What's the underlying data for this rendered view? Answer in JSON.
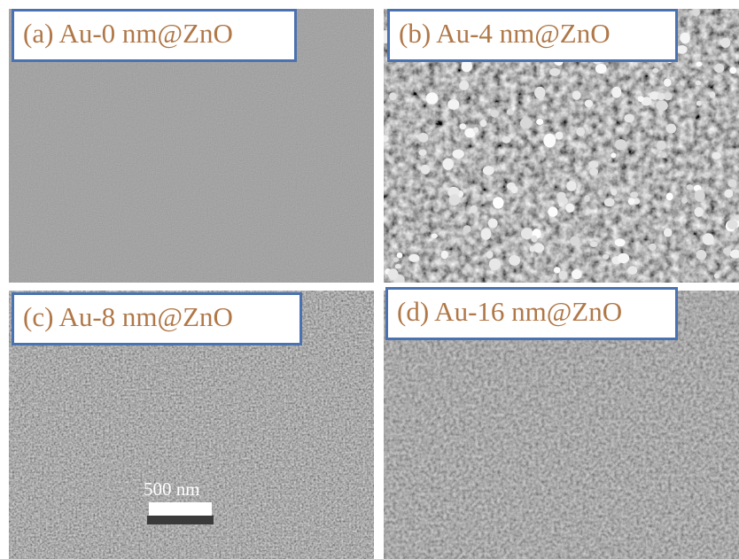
{
  "figure": {
    "panels": [
      {
        "id": "a",
        "label": "(a) Au-0 nm@ZnO",
        "texture": "smooth"
      },
      {
        "id": "b",
        "label": "(b) Au-4 nm@ZnO",
        "texture": "particles"
      },
      {
        "id": "c",
        "label": "(c) Au-8 nm@ZnO",
        "texture": "fine-grain"
      },
      {
        "id": "d",
        "label": "(d) Au-16 nm@ZnO",
        "texture": "coarse-grain"
      }
    ],
    "scale_bar": {
      "label": "500 nm"
    }
  },
  "colors": {
    "label_border": "#4a72b0",
    "label_text": "#b07848",
    "smooth_bg": "#5c5c5c",
    "particles_bg": "#3c3c3c",
    "grain_bg": "#4e4e4e"
  }
}
